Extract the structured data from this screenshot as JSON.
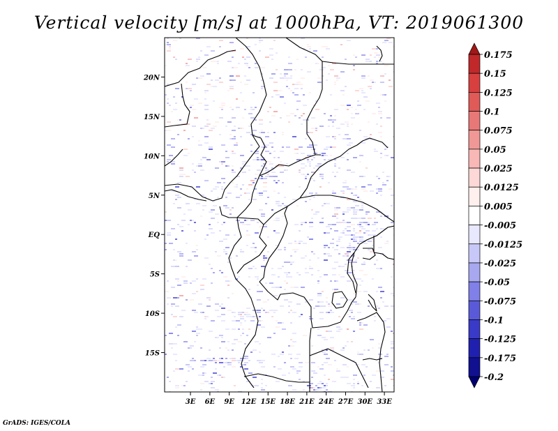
{
  "chart_data": {
    "type": "heatmap",
    "title": "Vertical velocity [m/s] at 1000hPa, VT: 2019061300",
    "variable": "Vertical velocity",
    "units": "m/s",
    "level": "1000hPa",
    "valid_time": "2019061300",
    "x_axis": {
      "ticks": [
        "3E",
        "6E",
        "9E",
        "12E",
        "15E",
        "18E",
        "21E",
        "24E",
        "27E",
        "30E",
        "33E"
      ],
      "values": [
        3,
        6,
        9,
        12,
        15,
        18,
        21,
        24,
        27,
        30,
        33
      ],
      "lon_range": [
        -1,
        34.5
      ]
    },
    "y_axis": {
      "ticks": [
        "20N",
        "15N",
        "10N",
        "5N",
        "EQ",
        "5S",
        "10S",
        "15S"
      ],
      "values": [
        20,
        15,
        10,
        5,
        0,
        -5,
        -10,
        -15
      ],
      "lat_range": [
        -20,
        25
      ]
    },
    "colorbar": {
      "labels": [
        "0.175",
        "0.15",
        "0.125",
        "0.1",
        "0.075",
        "0.05",
        "0.025",
        "0.0125",
        "0.005",
        "-0.005",
        "-0.0125",
        "-0.025",
        "-0.05",
        "-0.075",
        "-0.1",
        "-0.125",
        "-0.175",
        "-0.2"
      ],
      "colors": [
        "#a01818",
        "#c0282a",
        "#d84040",
        "#e05a58",
        "#e87878",
        "#f09896",
        "#f8b8b6",
        "#fcd8d6",
        "#fff0ee",
        "#ffffff",
        "#e8e8ff",
        "#c8c8f8",
        "#a8a8f0",
        "#8080e8",
        "#5a5ad8",
        "#3a3ac8",
        "#2020b0",
        "#101090",
        "#000070"
      ]
    },
    "credit": "GrADS: IGES/COLA"
  }
}
